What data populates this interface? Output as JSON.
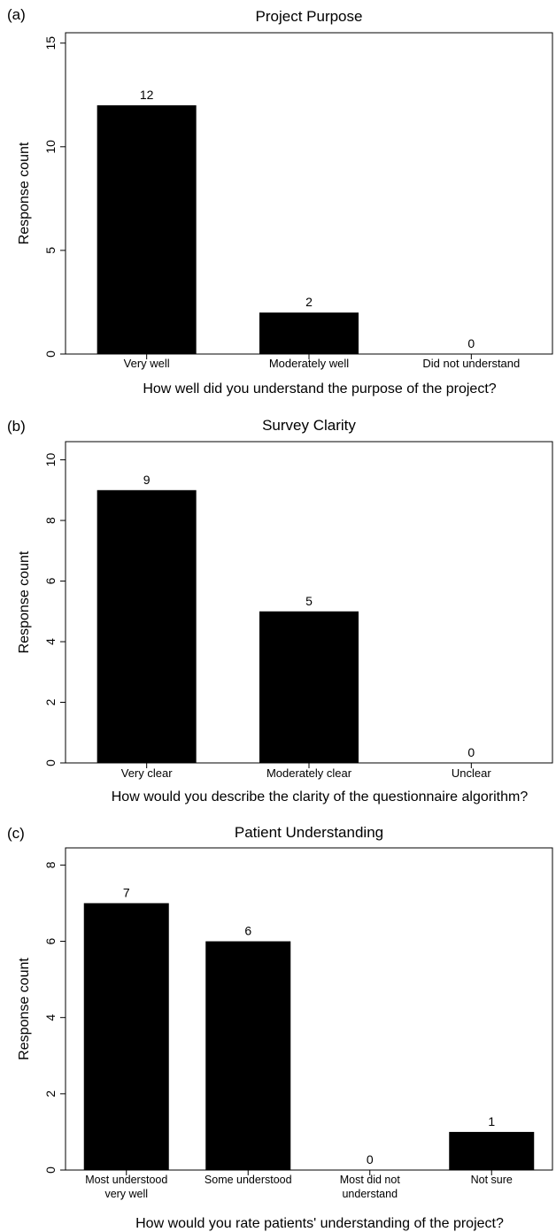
{
  "chart_data": [
    {
      "panel_label": "(a)",
      "type": "bar",
      "title": "Project Purpose",
      "xlabel": "How well did you understand the purpose of the project?",
      "ylabel": "Response count",
      "categories": [
        "Very well",
        "Moderately well",
        "Did not understand"
      ],
      "values": [
        12,
        2,
        0
      ],
      "ylim": [
        0,
        15.5
      ],
      "yticks": [
        0,
        5,
        10,
        15
      ],
      "bar_color": "#000000",
      "grid": false,
      "legend": "none"
    },
    {
      "panel_label": "(b)",
      "type": "bar",
      "title": "Survey Clarity",
      "xlabel": "How would you describe the clarity of the questionnaire algorithm?",
      "ylabel": "Response count",
      "categories": [
        "Very clear",
        "Moderately clear",
        "Unclear"
      ],
      "values": [
        9,
        5,
        0
      ],
      "ylim": [
        0,
        10.6
      ],
      "yticks": [
        0,
        2,
        4,
        6,
        8,
        10
      ],
      "bar_color": "#000000",
      "grid": false,
      "legend": "none"
    },
    {
      "panel_label": "(c)",
      "type": "bar",
      "title": "Patient Understanding",
      "xlabel": "How would you rate patients' understanding of the project?",
      "ylabel": "Response count",
      "categories": [
        "Most understood very well",
        "Some understood",
        "Most did not understand",
        "Not sure"
      ],
      "values": [
        7,
        6,
        0,
        1
      ],
      "ylim": [
        0,
        8.45
      ],
      "yticks": [
        0,
        2,
        4,
        6,
        8
      ],
      "bar_color": "#000000",
      "grid": false,
      "legend": "none"
    }
  ]
}
